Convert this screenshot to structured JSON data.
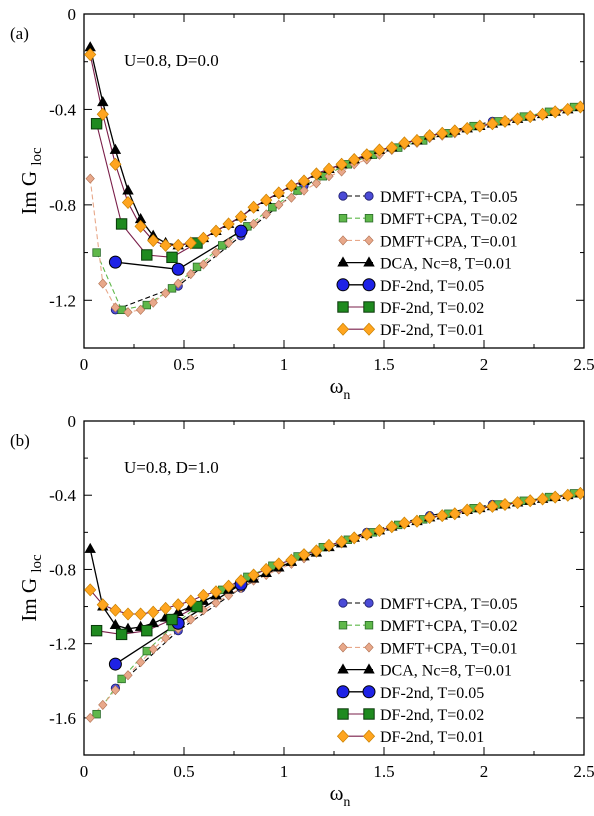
{
  "colors": {
    "dmft_blue": "#4b4bd6",
    "dmft_green": "#5fb84a",
    "dmft_pink": "#e8a88a",
    "dca_black": "#000000",
    "df_blue": "#1e22e6",
    "df_green": "#1f8a1f",
    "df_orange": "#ffa51f",
    "df_line_dark": "#7a1f4a"
  },
  "chart_data": [
    {
      "panel_label": "(a)",
      "annotation": "U=0.8, D=0.0",
      "type": "line",
      "xlabel": "ω",
      "xlabel_sub": "n",
      "ylabel": "Im G",
      "ylabel_sub": "loc",
      "xlim": [
        0,
        2.5
      ],
      "ylim": [
        -1.4,
        0
      ],
      "xticks": [
        0,
        0.5,
        1,
        1.5,
        2,
        2.5
      ],
      "xticklabels": [
        "0",
        "0.5",
        "1",
        "1.5",
        "2",
        "2.5"
      ],
      "yticks": [
        0,
        -0.4,
        -0.8,
        -1.2
      ],
      "yticklabels": [
        "0",
        "-0.4",
        "-0.8",
        "-1.2"
      ],
      "legend_position": "lower-right",
      "series": [
        {
          "name": "DMFT+CPA, T=0.05",
          "style": "dmft",
          "color": "#4b4bd6",
          "marker": "circle",
          "x": [
            0.157,
            0.471,
            0.785,
            1.1,
            1.414,
            1.728,
            2.042,
            2.356
          ],
          "y": [
            -1.24,
            -1.14,
            -0.93,
            -0.72,
            -0.59,
            -0.51,
            -0.45,
            -0.41
          ]
        },
        {
          "name": "DMFT+CPA, T=0.02",
          "style": "dmft",
          "color": "#5fb84a",
          "marker": "square",
          "x": [
            0.063,
            0.188,
            0.314,
            0.44,
            0.565,
            0.691,
            0.817,
            0.942,
            1.068,
            1.194,
            1.319,
            1.445,
            1.571,
            1.696,
            1.822,
            1.948,
            2.073,
            2.199,
            2.325,
            2.45
          ],
          "y": [
            -1.0,
            -1.24,
            -1.22,
            -1.15,
            -1.06,
            -0.97,
            -0.89,
            -0.81,
            -0.74,
            -0.68,
            -0.63,
            -0.59,
            -0.56,
            -0.53,
            -0.5,
            -0.47,
            -0.45,
            -0.43,
            -0.41,
            -0.39
          ]
        },
        {
          "name": "DMFT+CPA, T=0.01",
          "style": "dmft",
          "color": "#e8a88a",
          "marker": "diamond",
          "x": [
            0.031,
            0.094,
            0.157,
            0.22,
            0.283,
            0.346,
            0.408,
            0.471,
            0.534,
            0.597,
            0.66,
            0.723,
            0.785,
            0.848,
            0.911,
            0.974,
            1.037,
            1.1,
            1.162,
            1.225,
            1.288,
            1.351,
            1.414,
            1.477,
            1.539,
            1.602,
            1.665,
            1.728,
            1.791,
            1.854,
            1.916,
            1.979,
            2.042,
            2.105,
            2.168,
            2.231,
            2.293,
            2.356,
            2.419,
            2.482
          ],
          "y": [
            -0.69,
            -1.13,
            -1.23,
            -1.25,
            -1.24,
            -1.21,
            -1.17,
            -1.13,
            -1.09,
            -1.05,
            -1.0,
            -0.96,
            -0.92,
            -0.88,
            -0.84,
            -0.8,
            -0.77,
            -0.74,
            -0.71,
            -0.68,
            -0.66,
            -0.63,
            -0.61,
            -0.59,
            -0.57,
            -0.55,
            -0.54,
            -0.52,
            -0.51,
            -0.5,
            -0.48,
            -0.47,
            -0.46,
            -0.45,
            -0.44,
            -0.43,
            -0.42,
            -0.41,
            -0.4,
            -0.39
          ]
        },
        {
          "name": "DCA, Nc=8, T=0.01",
          "style": "solid",
          "color": "#000000",
          "marker": "triangle",
          "x": [
            0.031,
            0.094,
            0.157,
            0.22,
            0.283,
            0.346,
            0.408,
            0.471,
            0.534,
            0.597,
            0.66,
            0.723,
            0.785,
            0.848,
            0.911,
            0.974,
            1.037,
            1.1,
            1.162,
            1.225,
            1.288,
            1.351,
            1.414,
            1.477,
            1.539,
            1.602,
            1.665,
            1.728,
            1.791,
            1.854,
            1.916,
            1.979,
            2.042,
            2.105,
            2.168,
            2.231,
            2.293,
            2.356,
            2.419,
            2.482
          ],
          "y": [
            -0.14,
            -0.37,
            -0.57,
            -0.74,
            -0.86,
            -0.93,
            -0.96,
            -0.97,
            -0.96,
            -0.94,
            -0.91,
            -0.88,
            -0.85,
            -0.81,
            -0.78,
            -0.75,
            -0.72,
            -0.7,
            -0.67,
            -0.65,
            -0.63,
            -0.61,
            -0.59,
            -0.57,
            -0.56,
            -0.54,
            -0.53,
            -0.51,
            -0.5,
            -0.49,
            -0.48,
            -0.47,
            -0.46,
            -0.45,
            -0.44,
            -0.43,
            -0.42,
            -0.41,
            -0.4,
            -0.39
          ]
        },
        {
          "name": "DF-2nd, T=0.05",
          "style": "solid",
          "color": "#1e22e6",
          "marker": "circle_big",
          "x": [
            0.157,
            0.471,
            0.785
          ],
          "y": [
            -1.04,
            -1.07,
            -0.91
          ]
        },
        {
          "name": "DF-2nd, T=0.02",
          "style": "solid_dark",
          "color": "#1f8a1f",
          "marker": "square_big",
          "x": [
            0.063,
            0.188,
            0.314,
            0.44,
            0.565
          ],
          "y": [
            -0.46,
            -0.88,
            -1.01,
            -1.02,
            -0.96
          ]
        },
        {
          "name": "DF-2nd, T=0.01",
          "style": "solid_dark",
          "color": "#ffa51f",
          "marker": "diamond_big",
          "x": [
            0.031,
            0.094,
            0.157,
            0.22,
            0.283,
            0.346,
            0.408,
            0.471,
            0.534,
            0.597,
            0.66,
            0.723,
            0.785,
            0.848,
            0.911,
            0.974,
            1.037,
            1.1,
            1.162,
            1.225,
            1.288,
            1.351,
            1.414,
            1.477,
            1.539,
            1.602,
            1.665,
            1.728,
            1.791,
            1.854,
            1.916,
            1.979,
            2.042,
            2.105,
            2.168,
            2.231,
            2.293,
            2.356,
            2.419,
            2.482
          ],
          "y": [
            -0.17,
            -0.42,
            -0.63,
            -0.79,
            -0.89,
            -0.95,
            -0.97,
            -0.97,
            -0.96,
            -0.94,
            -0.91,
            -0.88,
            -0.85,
            -0.81,
            -0.78,
            -0.75,
            -0.72,
            -0.7,
            -0.67,
            -0.65,
            -0.63,
            -0.61,
            -0.59,
            -0.57,
            -0.56,
            -0.54,
            -0.53,
            -0.51,
            -0.5,
            -0.49,
            -0.48,
            -0.47,
            -0.46,
            -0.45,
            -0.44,
            -0.43,
            -0.42,
            -0.41,
            -0.4,
            -0.39
          ]
        }
      ]
    },
    {
      "panel_label": "(b)",
      "annotation": "U=0.8, D=1.0",
      "type": "line",
      "xlabel": "ω",
      "xlabel_sub": "n",
      "ylabel": "Im G",
      "ylabel_sub": "loc",
      "xlim": [
        0,
        2.5
      ],
      "ylim": [
        -1.8,
        0
      ],
      "xticks": [
        0,
        0.5,
        1,
        1.5,
        2,
        2.5
      ],
      "xticklabels": [
        "0",
        "0.5",
        "1",
        "1.5",
        "2",
        "2.5"
      ],
      "yticks": [
        0,
        -0.4,
        -0.8,
        -1.2,
        -1.6
      ],
      "yticklabels": [
        "0",
        "-0.4",
        "-0.8",
        "-1.2",
        "-1.6"
      ],
      "legend_position": "lower-right",
      "series": [
        {
          "name": "DMFT+CPA, T=0.05",
          "style": "dmft",
          "color": "#4b4bd6",
          "marker": "circle",
          "x": [
            0.157,
            0.471,
            0.785,
            1.1,
            1.414,
            1.728,
            2.042,
            2.356
          ],
          "y": [
            -1.44,
            -1.13,
            -0.9,
            -0.72,
            -0.6,
            -0.51,
            -0.45,
            -0.41
          ]
        },
        {
          "name": "DMFT+CPA, T=0.02",
          "style": "dmft",
          "color": "#5fb84a",
          "marker": "square",
          "x": [
            0.063,
            0.188,
            0.314,
            0.44,
            0.565,
            0.691,
            0.817,
            0.942,
            1.068,
            1.194,
            1.319,
            1.445,
            1.571,
            1.696,
            1.822,
            1.948,
            2.073,
            2.199,
            2.325,
            2.45
          ],
          "y": [
            -1.58,
            -1.39,
            -1.24,
            -1.11,
            -1.0,
            -0.91,
            -0.84,
            -0.78,
            -0.73,
            -0.68,
            -0.64,
            -0.6,
            -0.56,
            -0.53,
            -0.5,
            -0.47,
            -0.45,
            -0.43,
            -0.41,
            -0.39
          ]
        },
        {
          "name": "DMFT+CPA, T=0.01",
          "style": "dmft",
          "color": "#e8a88a",
          "marker": "diamond",
          "x": [
            0.031,
            0.094,
            0.157,
            0.22,
            0.283,
            0.346,
            0.408,
            0.471,
            0.534,
            0.597,
            0.66,
            0.723,
            0.785,
            0.848,
            0.911,
            0.974,
            1.037,
            1.1,
            1.162,
            1.225,
            1.288,
            1.351,
            1.414,
            1.477,
            1.539,
            1.602,
            1.665,
            1.728,
            1.791,
            1.854,
            1.916,
            1.979,
            2.042,
            2.105,
            2.168,
            2.231,
            2.293,
            2.356,
            2.419,
            2.482
          ],
          "y": [
            -1.6,
            -1.53,
            -1.45,
            -1.37,
            -1.3,
            -1.23,
            -1.17,
            -1.12,
            -1.07,
            -1.02,
            -0.98,
            -0.94,
            -0.9,
            -0.86,
            -0.83,
            -0.8,
            -0.77,
            -0.74,
            -0.71,
            -0.68,
            -0.66,
            -0.63,
            -0.61,
            -0.59,
            -0.57,
            -0.55,
            -0.54,
            -0.52,
            -0.51,
            -0.5,
            -0.48,
            -0.47,
            -0.46,
            -0.45,
            -0.44,
            -0.43,
            -0.42,
            -0.41,
            -0.4,
            -0.39
          ]
        },
        {
          "name": "DCA, Nc=8, T=0.01",
          "style": "solid",
          "color": "#000000",
          "marker": "triangle",
          "x": [
            0.031,
            0.094,
            0.157,
            0.22,
            0.283,
            0.346,
            0.408,
            0.471,
            0.534,
            0.597,
            0.66,
            0.723,
            0.785,
            0.848,
            0.911,
            0.974,
            1.037,
            1.1,
            1.162,
            1.225,
            1.288,
            1.351,
            1.414,
            1.477,
            1.539,
            1.602,
            1.665,
            1.728,
            1.791,
            1.854,
            1.916,
            1.979,
            2.042,
            2.105,
            2.168,
            2.231,
            2.293,
            2.356,
            2.419,
            2.482
          ],
          "y": [
            -0.69,
            -1.0,
            -1.1,
            -1.12,
            -1.11,
            -1.09,
            -1.06,
            -1.03,
            -1.0,
            -0.97,
            -0.94,
            -0.91,
            -0.88,
            -0.85,
            -0.82,
            -0.79,
            -0.76,
            -0.73,
            -0.71,
            -0.68,
            -0.66,
            -0.63,
            -0.61,
            -0.59,
            -0.57,
            -0.55,
            -0.54,
            -0.52,
            -0.51,
            -0.5,
            -0.48,
            -0.47,
            -0.46,
            -0.45,
            -0.44,
            -0.43,
            -0.42,
            -0.41,
            -0.4,
            -0.39
          ]
        },
        {
          "name": "DF-2nd, T=0.05",
          "style": "solid",
          "color": "#1e22e6",
          "marker": "circle_big",
          "x": [
            0.157,
            0.471,
            0.785
          ],
          "y": [
            -1.31,
            -1.09,
            -0.88
          ]
        },
        {
          "name": "DF-2nd, T=0.02",
          "style": "solid_dark",
          "color": "#1f8a1f",
          "marker": "square_big",
          "x": [
            0.063,
            0.188,
            0.314,
            0.44,
            0.565
          ],
          "y": [
            -1.13,
            -1.15,
            -1.13,
            -1.07,
            -1.0
          ]
        },
        {
          "name": "DF-2nd, T=0.01",
          "style": "solid_dark",
          "color": "#ffa51f",
          "marker": "diamond_big",
          "x": [
            0.031,
            0.094,
            0.157,
            0.22,
            0.283,
            0.346,
            0.408,
            0.471,
            0.534,
            0.597,
            0.66,
            0.723,
            0.785,
            0.848,
            0.911,
            0.974,
            1.037,
            1.1,
            1.162,
            1.225,
            1.288,
            1.351,
            1.414,
            1.477,
            1.539,
            1.602,
            1.665,
            1.728,
            1.791,
            1.854,
            1.916,
            1.979,
            2.042,
            2.105,
            2.168,
            2.231,
            2.293,
            2.356,
            2.419,
            2.482
          ],
          "y": [
            -0.91,
            -0.99,
            -1.02,
            -1.04,
            -1.04,
            -1.03,
            -1.01,
            -0.99,
            -0.97,
            -0.94,
            -0.92,
            -0.89,
            -0.86,
            -0.83,
            -0.8,
            -0.77,
            -0.75,
            -0.72,
            -0.7,
            -0.67,
            -0.65,
            -0.63,
            -0.61,
            -0.59,
            -0.57,
            -0.55,
            -0.54,
            -0.52,
            -0.51,
            -0.5,
            -0.48,
            -0.47,
            -0.46,
            -0.45,
            -0.44,
            -0.43,
            -0.42,
            -0.41,
            -0.4,
            -0.39
          ]
        }
      ]
    }
  ]
}
